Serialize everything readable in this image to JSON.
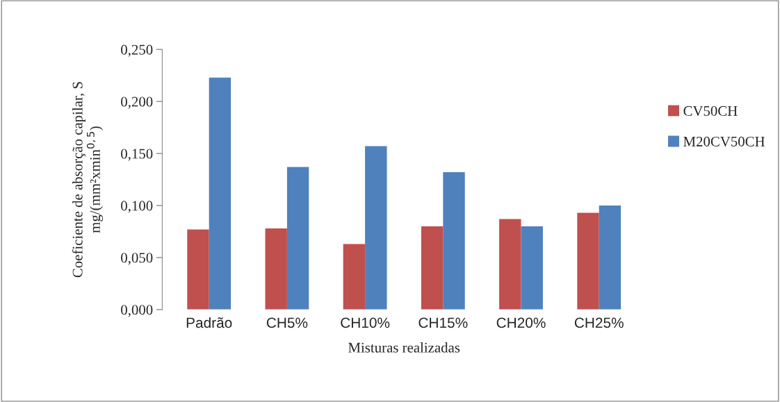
{
  "chart_data": {
    "type": "bar",
    "xlabel": "Misturas realizadas",
    "ylabel": "Coeficiente de absorção capilar, S\nmg/(mm²xmin$^{0,5}$)",
    "categories": [
      "Padrão",
      "CH5%",
      "CH10%",
      "CH15%",
      "CH20%",
      "CH25%"
    ],
    "series": [
      {
        "name": "CV50CH",
        "color": "#c0504d",
        "values": [
          0.077,
          0.078,
          0.063,
          0.08,
          0.087,
          0.093
        ]
      },
      {
        "name": "M20CV50CH",
        "color": "#4f81bd",
        "values": [
          0.223,
          0.137,
          0.157,
          0.132,
          0.08,
          0.1
        ]
      }
    ],
    "ylim": [
      0,
      0.25
    ],
    "yticks": [
      {
        "value": 0,
        "label": "0,000"
      },
      {
        "value": 0.05,
        "label": "0,050"
      },
      {
        "value": 0.1,
        "label": "0,100"
      },
      {
        "value": 0.15,
        "label": "0,150"
      },
      {
        "value": 0.2,
        "label": "0,200"
      },
      {
        "value": 0.25,
        "label": "0,250"
      }
    ],
    "grid": false,
    "legend": "right"
  }
}
